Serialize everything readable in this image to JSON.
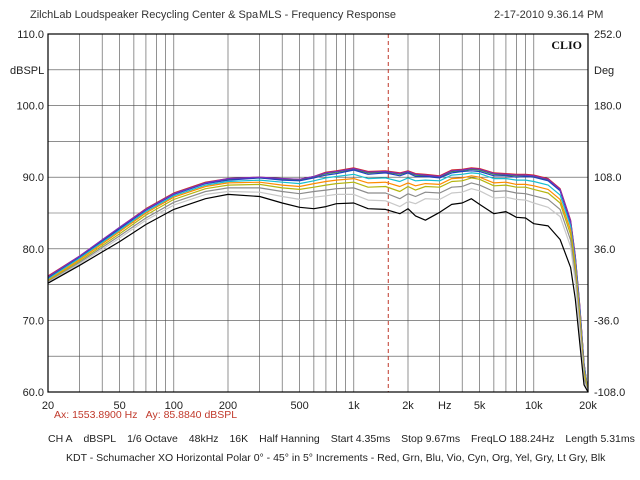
{
  "header": {
    "app_title": "ZilchLab Loudspeaker Recycling Center & Spa",
    "measurement": "MLS - Frequency Response",
    "timestamp": "2-17-2010 9.36.14 PM"
  },
  "chart_data": {
    "type": "line",
    "title": "MLS - Frequency Response",
    "badge": "CLIO",
    "x_scale": "log",
    "xlim": [
      20,
      20000
    ],
    "x_ticks": [
      {
        "v": 20,
        "label": "20"
      },
      {
        "v": 50,
        "label": "50"
      },
      {
        "v": 100,
        "label": "100"
      },
      {
        "v": 200,
        "label": "200"
      },
      {
        "v": 500,
        "label": "500"
      },
      {
        "v": 1000,
        "label": "1k"
      },
      {
        "v": 2000,
        "label": "2k"
      },
      {
        "v": 5000,
        "label": "5k"
      },
      {
        "v": 10000,
        "label": "10k"
      },
      {
        "v": 20000,
        "label": "20k"
      }
    ],
    "x_unit": "Hz",
    "y_left": {
      "unit": "dBSPL",
      "ylim": [
        60,
        110
      ],
      "ticks": [
        {
          "v": 110,
          "label": "110.0"
        },
        {
          "v": 100,
          "label": "100.0"
        },
        {
          "v": 90,
          "label": "90.0"
        },
        {
          "v": 80,
          "label": "80.0"
        },
        {
          "v": 70,
          "label": "70.0"
        },
        {
          "v": 60,
          "label": "60.0"
        }
      ]
    },
    "y_right": {
      "unit": "Deg",
      "ticks": [
        "252.0",
        "180.0",
        "108.0",
        "36.0",
        "-36.0",
        "-108.0"
      ]
    },
    "grid": true,
    "marker_hz": 1553.89,
    "x": [
      20,
      30,
      50,
      70,
      100,
      150,
      200,
      300,
      400,
      500,
      600,
      700,
      800,
      1000,
      1200,
      1500,
      1800,
      2000,
      2200,
      2500,
      3000,
      3500,
      4000,
      4500,
      5000,
      6000,
      7000,
      8000,
      9000,
      10000,
      12000,
      14000,
      16000,
      17000,
      18000,
      19000,
      20000
    ],
    "series": [
      {
        "color": "#d62728",
        "values": [
          76.2,
          79.0,
          83.0,
          85.6,
          87.8,
          89.3,
          89.8,
          90.0,
          89.8,
          89.7,
          90.1,
          90.7,
          90.9,
          91.3,
          90.8,
          90.9,
          90.6,
          90.9,
          90.5,
          90.4,
          90.2,
          91.0,
          91.1,
          91.3,
          91.2,
          90.6,
          90.5,
          90.4,
          90.4,
          90.3,
          89.8,
          88.4,
          84.0,
          79.0,
          72.0,
          64.0,
          60.0
        ]
      },
      {
        "color": "#2ca02c",
        "values": [
          76.0,
          78.9,
          82.9,
          85.5,
          87.7,
          89.2,
          89.7,
          89.9,
          89.7,
          89.6,
          90.0,
          90.5,
          90.7,
          91.1,
          90.6,
          90.7,
          90.4,
          90.7,
          90.3,
          90.2,
          90.0,
          90.8,
          90.9,
          91.1,
          91.0,
          90.4,
          90.3,
          90.2,
          90.2,
          90.1,
          89.6,
          88.2,
          83.8,
          78.8,
          71.8,
          64.0,
          60.0
        ]
      },
      {
        "color": "#1f3fbf",
        "values": [
          75.9,
          78.8,
          82.8,
          85.4,
          87.6,
          89.1,
          89.6,
          89.9,
          89.6,
          89.5,
          89.9,
          90.3,
          90.5,
          91.0,
          90.4,
          90.6,
          90.2,
          90.6,
          90.1,
          90.1,
          89.9,
          90.6,
          90.8,
          90.9,
          90.8,
          90.2,
          90.2,
          90.0,
          90.1,
          90.0,
          89.5,
          88.1,
          83.6,
          78.6,
          71.6,
          63.8,
          60.0
        ]
      },
      {
        "color": "#7b2fbf",
        "values": [
          76.1,
          79.0,
          83.0,
          85.5,
          87.7,
          89.2,
          89.8,
          90.0,
          89.8,
          89.7,
          90.1,
          90.6,
          90.8,
          91.2,
          90.7,
          90.8,
          90.5,
          90.8,
          90.4,
          90.3,
          90.1,
          90.9,
          91.0,
          91.2,
          91.1,
          90.5,
          90.4,
          90.3,
          90.3,
          90.2,
          89.7,
          88.3,
          83.9,
          78.9,
          71.9,
          64.0,
          60.0
        ]
      },
      {
        "color": "#17becf",
        "values": [
          75.8,
          78.7,
          82.6,
          85.2,
          87.4,
          88.9,
          89.4,
          89.6,
          89.3,
          89.1,
          89.5,
          89.9,
          90.1,
          90.4,
          89.8,
          89.9,
          89.4,
          89.9,
          89.5,
          89.6,
          89.5,
          90.3,
          90.4,
          90.6,
          90.5,
          89.8,
          89.8,
          89.6,
          89.6,
          89.4,
          88.9,
          87.5,
          83.2,
          78.2,
          71.2,
          63.5,
          60.0
        ]
      },
      {
        "color": "#ff8c00",
        "values": [
          75.6,
          78.5,
          82.4,
          85.0,
          87.2,
          88.7,
          89.2,
          89.3,
          88.9,
          88.7,
          89.1,
          89.4,
          89.6,
          89.8,
          89.2,
          89.3,
          88.7,
          89.2,
          88.8,
          89.1,
          89.0,
          89.8,
          89.9,
          90.2,
          90.0,
          89.2,
          89.3,
          89.0,
          89.0,
          88.8,
          88.3,
          86.9,
          82.6,
          77.6,
          70.6,
          63.0,
          60.0
        ]
      },
      {
        "color": "#b5b50f",
        "values": [
          75.5,
          78.3,
          82.1,
          84.7,
          86.9,
          88.4,
          88.9,
          89.0,
          88.5,
          88.3,
          88.6,
          88.9,
          89.1,
          89.3,
          88.6,
          88.7,
          88.0,
          88.7,
          88.2,
          88.7,
          88.6,
          89.4,
          89.5,
          89.9,
          89.7,
          88.8,
          88.9,
          88.6,
          88.6,
          88.3,
          87.8,
          86.4,
          82.0,
          77.0,
          70.0,
          62.6,
          60.0
        ]
      },
      {
        "color": "#8c8c8c",
        "values": [
          75.4,
          78.1,
          81.8,
          84.3,
          86.5,
          88.0,
          88.5,
          88.5,
          88.0,
          87.7,
          88.0,
          88.2,
          88.4,
          88.5,
          87.8,
          87.8,
          87.0,
          87.7,
          87.3,
          87.9,
          87.8,
          88.6,
          88.7,
          89.2,
          88.9,
          88.0,
          88.1,
          87.8,
          87.7,
          87.4,
          86.9,
          85.5,
          81.2,
          76.2,
          69.2,
          62.0,
          60.0
        ]
      },
      {
        "color": "#c8c8c8",
        "values": [
          75.3,
          77.9,
          81.5,
          84.0,
          86.1,
          87.6,
          88.0,
          87.9,
          87.3,
          86.9,
          87.2,
          87.4,
          87.6,
          87.6,
          86.8,
          86.7,
          85.9,
          86.6,
          86.3,
          87.0,
          86.9,
          87.8,
          87.9,
          88.4,
          88.1,
          87.1,
          87.2,
          86.9,
          86.8,
          86.4,
          85.8,
          84.5,
          80.3,
          75.3,
          68.5,
          61.5,
          60.0
        ]
      },
      {
        "color": "#000000",
        "values": [
          75.2,
          77.7,
          81.0,
          83.4,
          85.5,
          87.0,
          87.6,
          87.3,
          86.4,
          85.8,
          85.6,
          85.9,
          86.3,
          86.4,
          85.6,
          85.5,
          84.9,
          85.6,
          84.6,
          84.0,
          85.1,
          86.2,
          86.4,
          87.0,
          86.2,
          84.9,
          85.2,
          84.4,
          84.3,
          83.5,
          83.2,
          81.3,
          77.4,
          73.0,
          66.8,
          61.0,
          60.0
        ]
      }
    ]
  },
  "cursor": {
    "x_readout": "Ax: 1553.8900 Hz",
    "y_readout": "Ay: 85.8840 dBSPL"
  },
  "params": {
    "channel": "CH A",
    "unit": "dBSPL",
    "smoothing": "1/6 Octave",
    "rate": "48kHz",
    "size": "16K",
    "window": "Half Hanning",
    "start": "Start 4.35ms",
    "stop": "Stop 9.67ms",
    "freqlo": "FreqLO 188.24Hz",
    "length": "Length 5.31ms"
  },
  "caption": "KDT - Schumacher XO Horizontal Polar 0° - 45° in 5° Increments - Red, Grn, Blu, Vio, Cyn, Org, Yel, Gry, Lt Gry, Blk"
}
